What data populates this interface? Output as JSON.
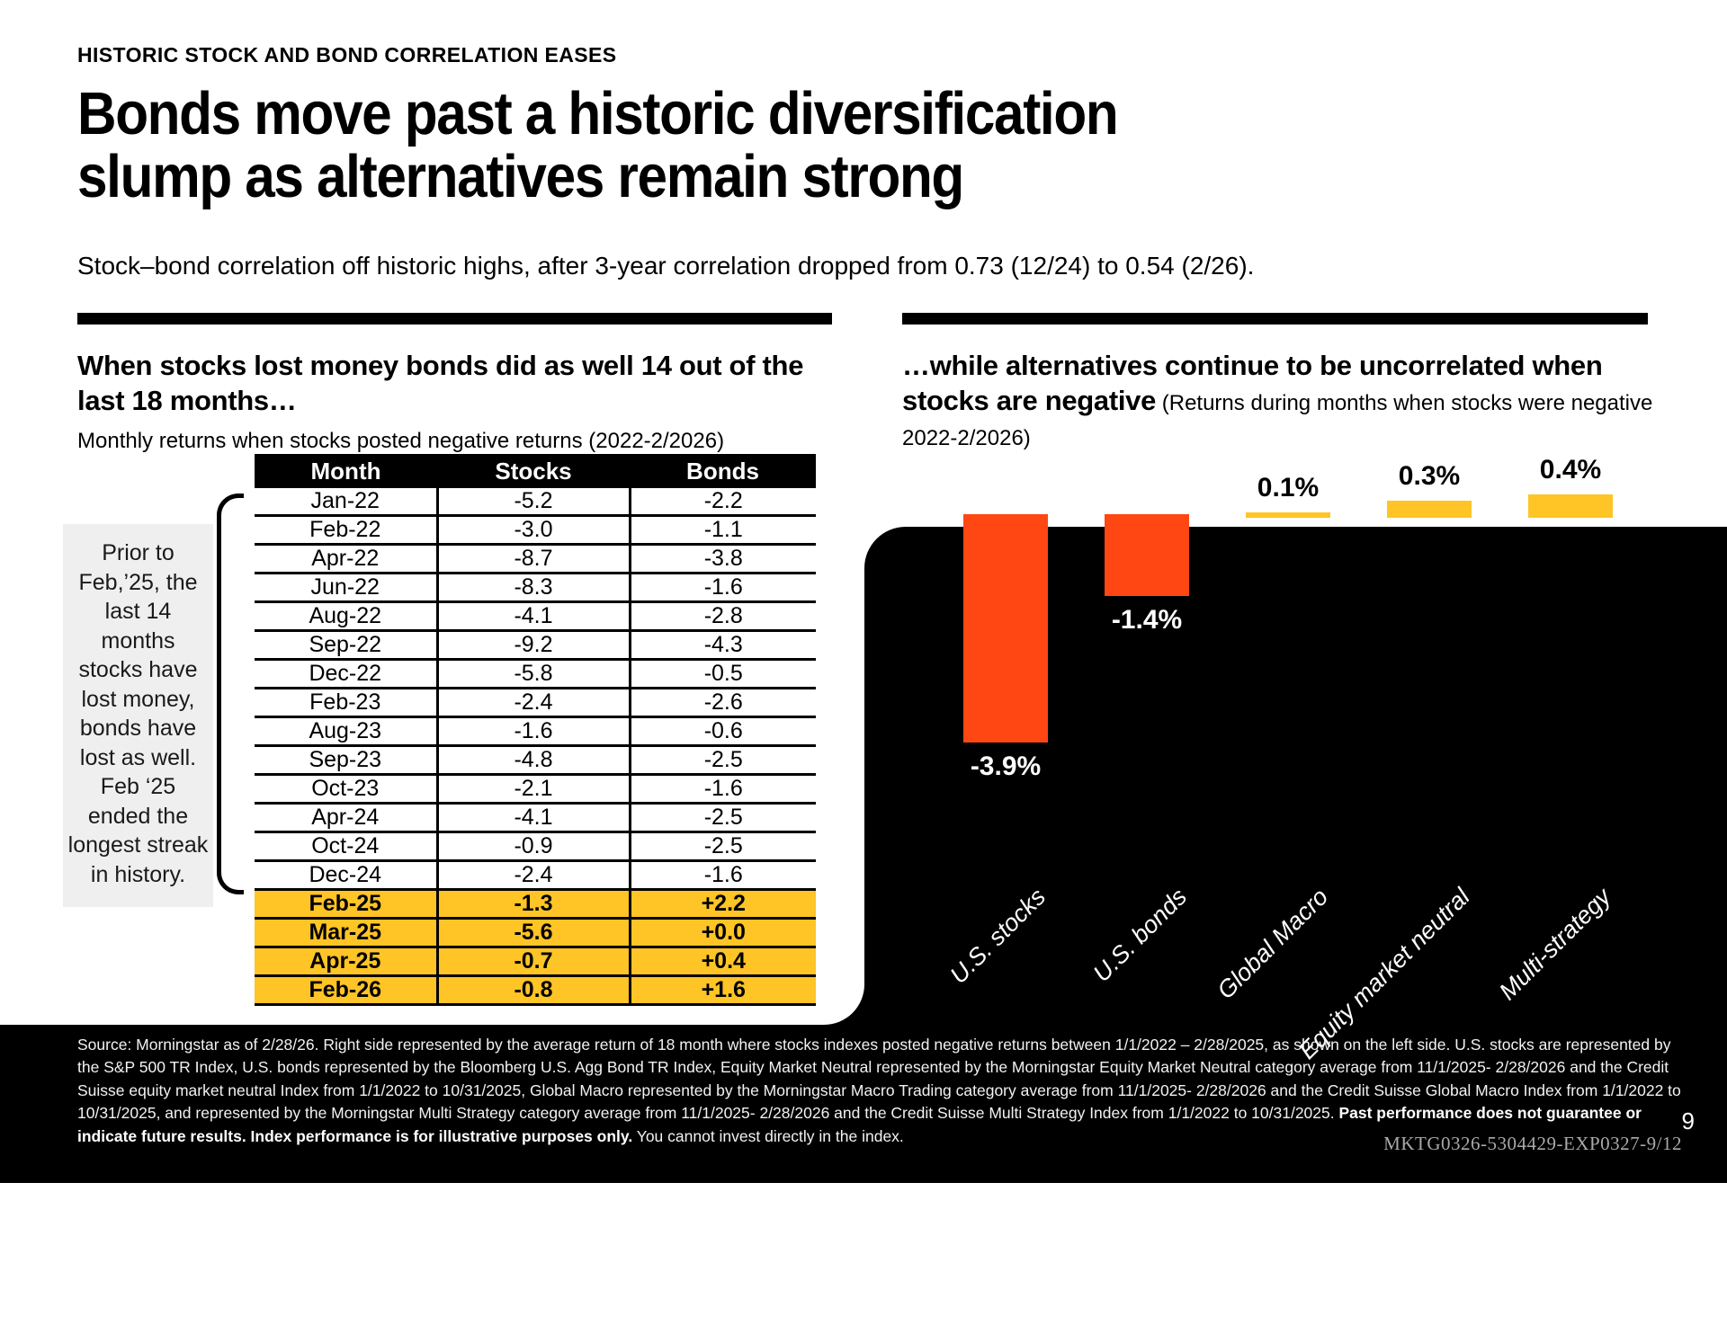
{
  "page": {
    "eyebrow": "HISTORIC STOCK AND BOND CORRELATION EASES",
    "title_line1": "Bonds move past a historic diversification",
    "title_line2": "slump as alternatives remain strong",
    "subtitle": "Stock–bond correlation off historic highs, after 3-year correlation dropped from 0.73 (12/24) to 0.54 (2/26).",
    "page_number": "9",
    "doc_code": "MKTG0326-5304429-EXP0327-9/12"
  },
  "left_panel": {
    "heading": "When stocks lost money bonds did as well 14 out of the last 18 months…",
    "subheading": "Monthly returns when stocks posted negative returns (2022-2/2026)",
    "callout": "Prior to Feb,’25,  the last 14 months stocks have lost money, bonds have lost as well. Feb ‘25 ended the longest streak in history.",
    "table": {
      "headers": [
        "Month",
        "Stocks",
        "Bonds"
      ],
      "rows": [
        {
          "month": "Jan-22",
          "stocks": "-5.2",
          "bonds": "-2.2",
          "highlight": false
        },
        {
          "month": "Feb-22",
          "stocks": "-3.0",
          "bonds": "-1.1",
          "highlight": false
        },
        {
          "month": "Apr-22",
          "stocks": "-8.7",
          "bonds": "-3.8",
          "highlight": false
        },
        {
          "month": "Jun-22",
          "stocks": "-8.3",
          "bonds": "-1.6",
          "highlight": false
        },
        {
          "month": "Aug-22",
          "stocks": "-4.1",
          "bonds": "-2.8",
          "highlight": false
        },
        {
          "month": "Sep-22",
          "stocks": "-9.2",
          "bonds": "-4.3",
          "highlight": false
        },
        {
          "month": "Dec-22",
          "stocks": "-5.8",
          "bonds": "-0.5",
          "highlight": false
        },
        {
          "month": "Feb-23",
          "stocks": "-2.4",
          "bonds": "-2.6",
          "highlight": false
        },
        {
          "month": "Aug-23",
          "stocks": "-1.6",
          "bonds": "-0.6",
          "highlight": false
        },
        {
          "month": "Sep-23",
          "stocks": "-4.8",
          "bonds": "-2.5",
          "highlight": false
        },
        {
          "month": "Oct-23",
          "stocks": "-2.1",
          "bonds": "-1.6",
          "highlight": false
        },
        {
          "month": "Apr-24",
          "stocks": "-4.1",
          "bonds": "-2.5",
          "highlight": false
        },
        {
          "month": "Oct-24",
          "stocks": "-0.9",
          "bonds": "-2.5",
          "highlight": false
        },
        {
          "month": "Dec-24",
          "stocks": "-2.4",
          "bonds": "-1.6",
          "highlight": false
        },
        {
          "month": "Feb-25",
          "stocks": "-1.3",
          "bonds": "+2.2",
          "highlight": true
        },
        {
          "month": "Mar-25",
          "stocks": "-5.6",
          "bonds": "+0.0",
          "highlight": true
        },
        {
          "month": "Apr-25",
          "stocks": "-0.7",
          "bonds": "+0.4",
          "highlight": true
        },
        {
          "month": "Feb-26",
          "stocks": "-0.8",
          "bonds": "+1.6",
          "highlight": true
        }
      ]
    }
  },
  "right_panel": {
    "heading_bold": "…while alternatives continue to be uncorrelated when stocks are negative",
    "heading_note": " (Returns during months when stocks were negative 2022-2/2026)"
  },
  "chart_data": {
    "type": "bar",
    "title": "…while alternatives continue to be uncorrelated when stocks are negative",
    "subtitle": "Returns during months when stocks were negative 2022-2/2026",
    "categories": [
      "U.S. stocks",
      "U.S. bonds",
      "Global Macro",
      "Equity market neutral",
      "Multi-strategy"
    ],
    "values": [
      -3.9,
      -1.4,
      0.1,
      0.3,
      0.4
    ],
    "value_labels": [
      "-3.9%",
      "-1.4%",
      "0.1%",
      "0.3%",
      "0.4%"
    ],
    "bar_colors": [
      "#FF4713",
      "#FF4713",
      "#FFC425",
      "#FFC425",
      "#FFC425"
    ],
    "ylim": [
      -4.2,
      0.6
    ],
    "grid": false,
    "legend_position": "none",
    "xlabel": "",
    "ylabel": ""
  },
  "footer": {
    "source_text": "Source:  Morningstar as of 2/28/26. Right side represented by the average return of 18 month where stocks indexes posted negative returns between 1/1/2022 – 2/28/2025, as shown on the left side. U.S. stocks are represented by the S&P 500 TR Index, U.S. bonds represented by the Bloomberg U.S. Agg Bond TR Index,  Equity Market Neutral represented by the Morningstar Equity Market Neutral category average from 11/1/2025- 2/28/2026 and the Credit Suisse equity market neutral Index from 1/1/2022 to 10/31/2025, Global Macro represented by the Morningstar Macro Trading category average from 11/1/2025- 2/28/2026 and the Credit Suisse Global Macro  Index from 1/1/2022 to 10/31/2025, and represented by the Morningstar Multi Strategy category average from 11/1/2025- 2/28/2026 and the Credit Suisse Multi Strategy Index from 1/1/2022 to 10/31/2025.   ",
    "bold_text": "Past performance does not guarantee or indicate future results. Index performance is for illustrative purposes only.",
    "tail_text": " You cannot invest directly in the index."
  },
  "colors": {
    "accent_yellow": "#FFC425",
    "accent_orange": "#FF4713",
    "panel_black": "#000000",
    "callout_gray": "#EFEFEF"
  }
}
